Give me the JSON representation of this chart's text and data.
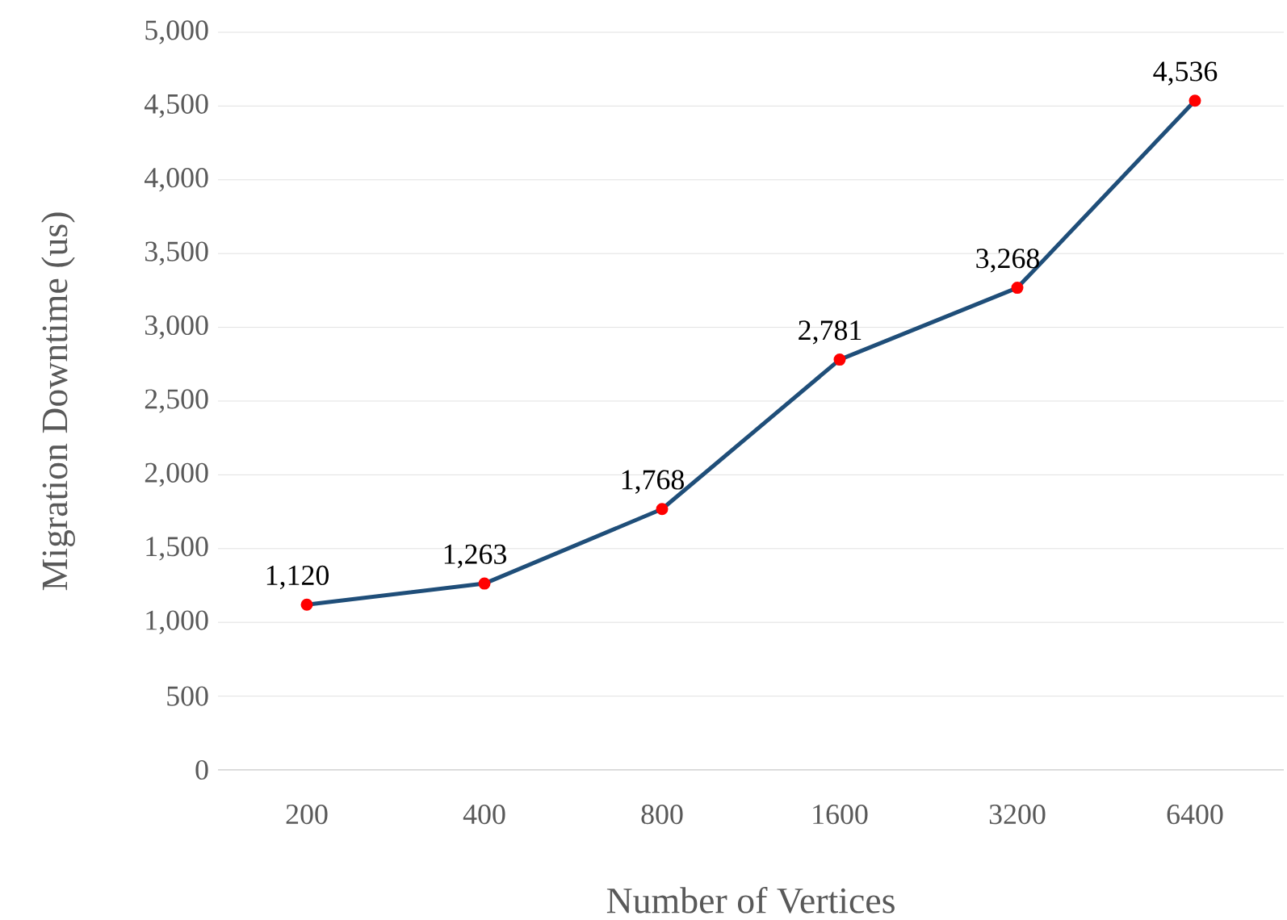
{
  "chart_data": {
    "type": "line",
    "xlabel": "Number of Vertices",
    "ylabel": "Migration Downtime (us)",
    "categories": [
      "200",
      "400",
      "800",
      "1600",
      "3200",
      "6400"
    ],
    "series": [
      {
        "color": "#1f4e79",
        "values": [
          1120,
          1263,
          1768,
          2781,
          3268,
          4536
        ],
        "value_labels": [
          "1,120",
          "1,263",
          "1,768",
          "2,781",
          "3,268",
          "4,536"
        ]
      }
    ],
    "ylim": [
      0,
      5000
    ],
    "yticks": [
      {
        "value": 0,
        "label": "0"
      },
      {
        "value": 500,
        "label": "500"
      },
      {
        "value": 1000,
        "label": "1,000"
      },
      {
        "value": 1500,
        "label": "1,500"
      },
      {
        "value": 2000,
        "label": "2,000"
      },
      {
        "value": 2500,
        "label": "2,500"
      },
      {
        "value": 3000,
        "label": "3,000"
      },
      {
        "value": 3500,
        "label": "3,500"
      },
      {
        "value": 4000,
        "label": "4,000"
      },
      {
        "value": 4500,
        "label": "4,500"
      },
      {
        "value": 5000,
        "label": "5,000"
      }
    ],
    "grid": "y",
    "marker": "circle",
    "line_style": "solid"
  }
}
